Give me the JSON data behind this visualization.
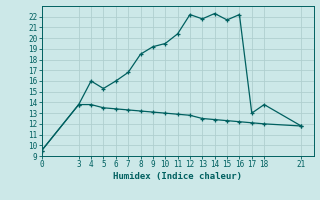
{
  "xlabel": "Humidex (Indice chaleur)",
  "ylabel": "",
  "background_color": "#cce8e8",
  "grid_color": "#b0cfcf",
  "line_color": "#006060",
  "xlim": [
    0,
    22
  ],
  "ylim": [
    9,
    23
  ],
  "xticks": [
    0,
    3,
    4,
    5,
    6,
    7,
    8,
    9,
    10,
    11,
    12,
    13,
    14,
    15,
    16,
    17,
    18,
    21
  ],
  "yticks": [
    9,
    10,
    11,
    12,
    13,
    14,
    15,
    16,
    17,
    18,
    19,
    20,
    21,
    22
  ],
  "line1_x": [
    0,
    3,
    4,
    5,
    6,
    7,
    8,
    9,
    10,
    11,
    12,
    13,
    14,
    15,
    16,
    17,
    18,
    21
  ],
  "line1_y": [
    9.5,
    13.8,
    16.0,
    15.3,
    16.0,
    16.8,
    18.5,
    19.2,
    19.5,
    20.4,
    22.2,
    21.8,
    22.3,
    21.7,
    22.2,
    13.0,
    13.8,
    11.8
  ],
  "line2_x": [
    0,
    3,
    4,
    5,
    6,
    7,
    8,
    9,
    10,
    11,
    12,
    13,
    14,
    15,
    16,
    17,
    18,
    21
  ],
  "line2_y": [
    9.5,
    13.8,
    13.8,
    13.5,
    13.4,
    13.3,
    13.2,
    13.1,
    13.0,
    12.9,
    12.8,
    12.5,
    12.4,
    12.3,
    12.2,
    12.1,
    12.0,
    11.8
  ]
}
